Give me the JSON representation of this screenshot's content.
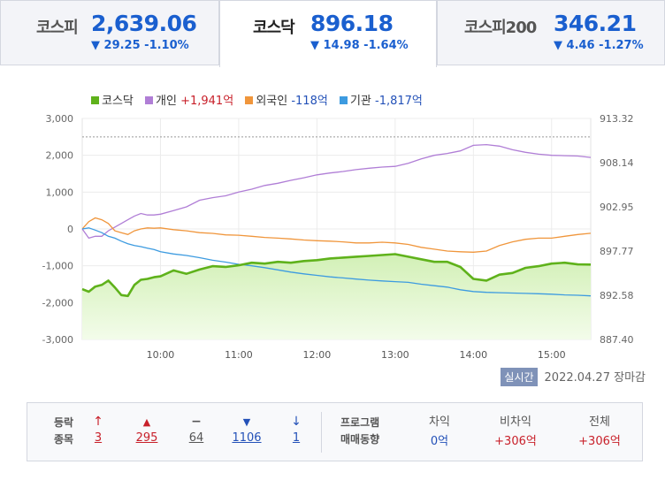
{
  "tabs": [
    {
      "name": "코스피",
      "value": "2,639.06",
      "change": "▼ 29.25 -1.10%"
    },
    {
      "name": "코스닥",
      "value": "896.18",
      "change": "▼ 14.98 -1.64%"
    },
    {
      "name": "코스피200",
      "value": "346.21",
      "change": "▼ 4.46 -1.27%"
    }
  ],
  "legend": [
    {
      "label": "코스닥",
      "value": "",
      "color": "#5fb21b",
      "value_color": ""
    },
    {
      "label": "개인",
      "value": "+1,941억",
      "color": "#b07ed6",
      "value_color": "#c8202a"
    },
    {
      "label": "외국인",
      "value": "-118억",
      "color": "#f0963c",
      "value_color": "#2351b8"
    },
    {
      "label": "기관",
      "value": "-1,817억",
      "color": "#3d9be0",
      "value_color": "#2351b8"
    }
  ],
  "status": {
    "badge": "실시간",
    "date": "2022.04.27",
    "text": "장마감"
  },
  "chart_data": {
    "type": "line",
    "x": [
      "9:00",
      "9:05",
      "9:10",
      "9:15",
      "9:20",
      "9:25",
      "9:30",
      "9:35",
      "9:40",
      "9:45",
      "9:50",
      "9:55",
      "10:00",
      "10:10",
      "10:20",
      "10:30",
      "10:40",
      "10:50",
      "11:00",
      "11:10",
      "11:20",
      "11:30",
      "11:40",
      "11:50",
      "12:00",
      "12:10",
      "12:20",
      "12:30",
      "12:40",
      "12:50",
      "13:00",
      "13:10",
      "13:20",
      "13:30",
      "13:40",
      "13:50",
      "14:00",
      "14:10",
      "14:20",
      "14:30",
      "14:40",
      "14:50",
      "15:00",
      "15:10",
      "15:20",
      "15:30"
    ],
    "series": [
      {
        "name": "개인",
        "axis": "left",
        "values": [
          0,
          -250,
          -200,
          -200,
          -50,
          50,
          150,
          250,
          350,
          420,
          380,
          380,
          400,
          500,
          600,
          780,
          850,
          900,
          1000,
          1080,
          1180,
          1240,
          1320,
          1390,
          1470,
          1520,
          1560,
          1610,
          1650,
          1680,
          1700,
          1780,
          1900,
          2000,
          2050,
          2120,
          2270,
          2290,
          2250,
          2150,
          2080,
          2030,
          2000,
          1990,
          1980,
          1941
        ]
      },
      {
        "name": "외국인",
        "axis": "left",
        "values": [
          0,
          200,
          300,
          250,
          150,
          -50,
          -100,
          -150,
          -50,
          0,
          30,
          20,
          30,
          -20,
          -50,
          -100,
          -120,
          -160,
          -170,
          -200,
          -230,
          -250,
          -270,
          -300,
          -320,
          -330,
          -350,
          -380,
          -380,
          -360,
          -380,
          -420,
          -500,
          -550,
          -600,
          -620,
          -630,
          -600,
          -450,
          -350,
          -280,
          -250,
          -250,
          -200,
          -150,
          -118
        ]
      },
      {
        "name": "기관",
        "axis": "left",
        "values": [
          0,
          30,
          -30,
          -100,
          -200,
          -250,
          -330,
          -400,
          -450,
          -480,
          -520,
          -560,
          -620,
          -680,
          -720,
          -780,
          -850,
          -900,
          -960,
          -1000,
          -1050,
          -1110,
          -1170,
          -1220,
          -1260,
          -1300,
          -1330,
          -1360,
          -1390,
          -1410,
          -1430,
          -1450,
          -1500,
          -1540,
          -1580,
          -1650,
          -1700,
          -1720,
          -1730,
          -1740,
          -1750,
          -1760,
          -1770,
          -1790,
          -1800,
          -1817
        ]
      },
      {
        "name": "코스닥",
        "axis": "right",
        "values": [
          893.3,
          893.0,
          893.6,
          893.8,
          894.3,
          893.5,
          892.6,
          892.5,
          893.8,
          894.4,
          894.5,
          894.7,
          894.8,
          895.5,
          895.1,
          895.6,
          896.0,
          895.9,
          896.1,
          896.4,
          896.3,
          896.5,
          896.4,
          896.6,
          896.7,
          896.9,
          897.0,
          897.1,
          897.2,
          897.3,
          897.4,
          897.1,
          896.8,
          896.5,
          896.5,
          895.9,
          894.5,
          894.3,
          895.0,
          895.2,
          895.8,
          896.0,
          896.3,
          896.4,
          896.2,
          896.18
        ]
      }
    ],
    "y_left": {
      "ticks": [
        "3,000",
        "2,000",
        "1,000",
        "0",
        "-1,000",
        "-2,000",
        "-3,000"
      ],
      "range": [
        -3000,
        3000
      ]
    },
    "y_right": {
      "ticks": [
        "913.32",
        "908.14",
        "902.95",
        "897.77",
        "892.58",
        "887.40"
      ],
      "range": [
        887.4,
        913.32
      ]
    },
    "x_ticks": [
      "10:00",
      "11:00",
      "12:00",
      "13:00",
      "14:00",
      "15:00"
    ],
    "reference_line": 911.16,
    "grid": true
  },
  "stats": {
    "label1": "등락",
    "label2": "종목",
    "items": [
      {
        "icon": "↑",
        "value": "3",
        "color": "#c8202a"
      },
      {
        "icon": "▲",
        "value": "295",
        "color": "#c8202a"
      },
      {
        "icon": "−",
        "value": "64",
        "color": "#555555"
      },
      {
        "icon": "▼",
        "value": "1106",
        "color": "#2351b8"
      },
      {
        "icon": "↓",
        "value": "1",
        "color": "#2351b8"
      }
    ]
  },
  "program": {
    "label1": "프로그램",
    "label2": "매매동향",
    "items": [
      {
        "header": "차익",
        "value": "0억",
        "color": "#2351b8"
      },
      {
        "header": "비차익",
        "value": "+306억",
        "color": "#c8202a"
      },
      {
        "header": "전체",
        "value": "+306억",
        "color": "#c8202a"
      }
    ]
  }
}
